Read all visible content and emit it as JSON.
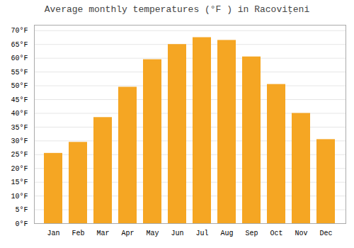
{
  "chart_data": {
    "type": "bar",
    "title": "Average monthly temperatures (°F ) in Racoviţeni",
    "categories": [
      "Jan",
      "Feb",
      "Mar",
      "Apr",
      "May",
      "Jun",
      "Jul",
      "Aug",
      "Sep",
      "Oct",
      "Nov",
      "Dec"
    ],
    "values": [
      25.5,
      29.5,
      38.5,
      49.5,
      59.5,
      65.0,
      67.5,
      66.5,
      60.5,
      50.5,
      40.0,
      30.5
    ],
    "color": "#F5A623",
    "ylim": [
      0,
      72
    ],
    "yticks": [
      {
        "value": 0,
        "label": "0°F"
      },
      {
        "value": 5,
        "label": "5°F"
      },
      {
        "value": 10,
        "label": "10°F"
      },
      {
        "value": 15,
        "label": "15°F"
      },
      {
        "value": 20,
        "label": "20°F"
      },
      {
        "value": 25,
        "label": "25°F"
      },
      {
        "value": 30,
        "label": "30°F"
      },
      {
        "value": 35,
        "label": "35°F"
      },
      {
        "value": 40,
        "label": "40°F"
      },
      {
        "value": 45,
        "label": "45°F"
      },
      {
        "value": 50,
        "label": "50°F"
      },
      {
        "value": 55,
        "label": "55°F"
      },
      {
        "value": 60,
        "label": "60°F"
      },
      {
        "value": 65,
        "label": "65°F"
      },
      {
        "value": 70,
        "label": "70°F"
      }
    ],
    "grid": true
  }
}
